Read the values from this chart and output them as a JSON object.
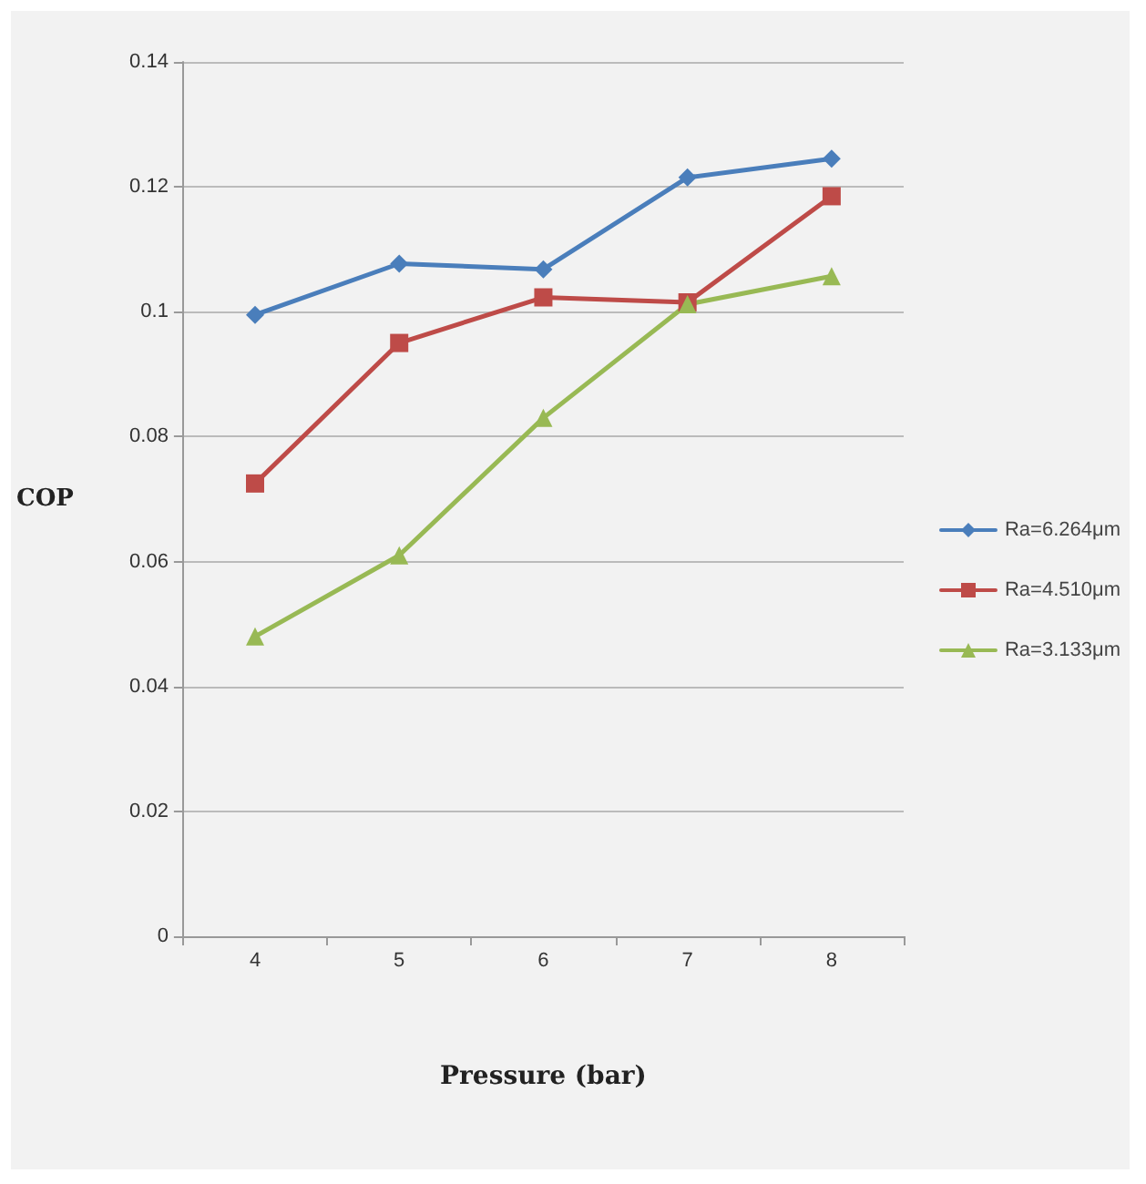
{
  "chart_data": {
    "type": "line",
    "xlabel": "Pressure (bar)",
    "ylabel": "COP",
    "categories": [
      "4",
      "5",
      "6",
      "7",
      "8"
    ],
    "series": [
      {
        "name": "Ra=6.264μm",
        "color": "#4a7ebb",
        "marker": "diamond",
        "values": [
          0.0995,
          0.1077,
          0.1068,
          0.1215,
          0.1245
        ]
      },
      {
        "name": "Ra=4.510μm",
        "color": "#be4b48",
        "marker": "square",
        "values": [
          0.0725,
          0.095,
          0.1023,
          0.1015,
          0.1185
        ]
      },
      {
        "name": "Ra=3.133μm",
        "color": "#98b954",
        "marker": "triangle",
        "values": [
          0.048,
          0.061,
          0.083,
          0.1012,
          0.1057
        ]
      }
    ],
    "ylim": [
      0,
      0.14
    ],
    "yticks": [
      0,
      0.02,
      0.04,
      0.06,
      0.08,
      0.1,
      0.12,
      0.14
    ],
    "grid": "y",
    "legend": "right",
    "line_style": "solid"
  }
}
